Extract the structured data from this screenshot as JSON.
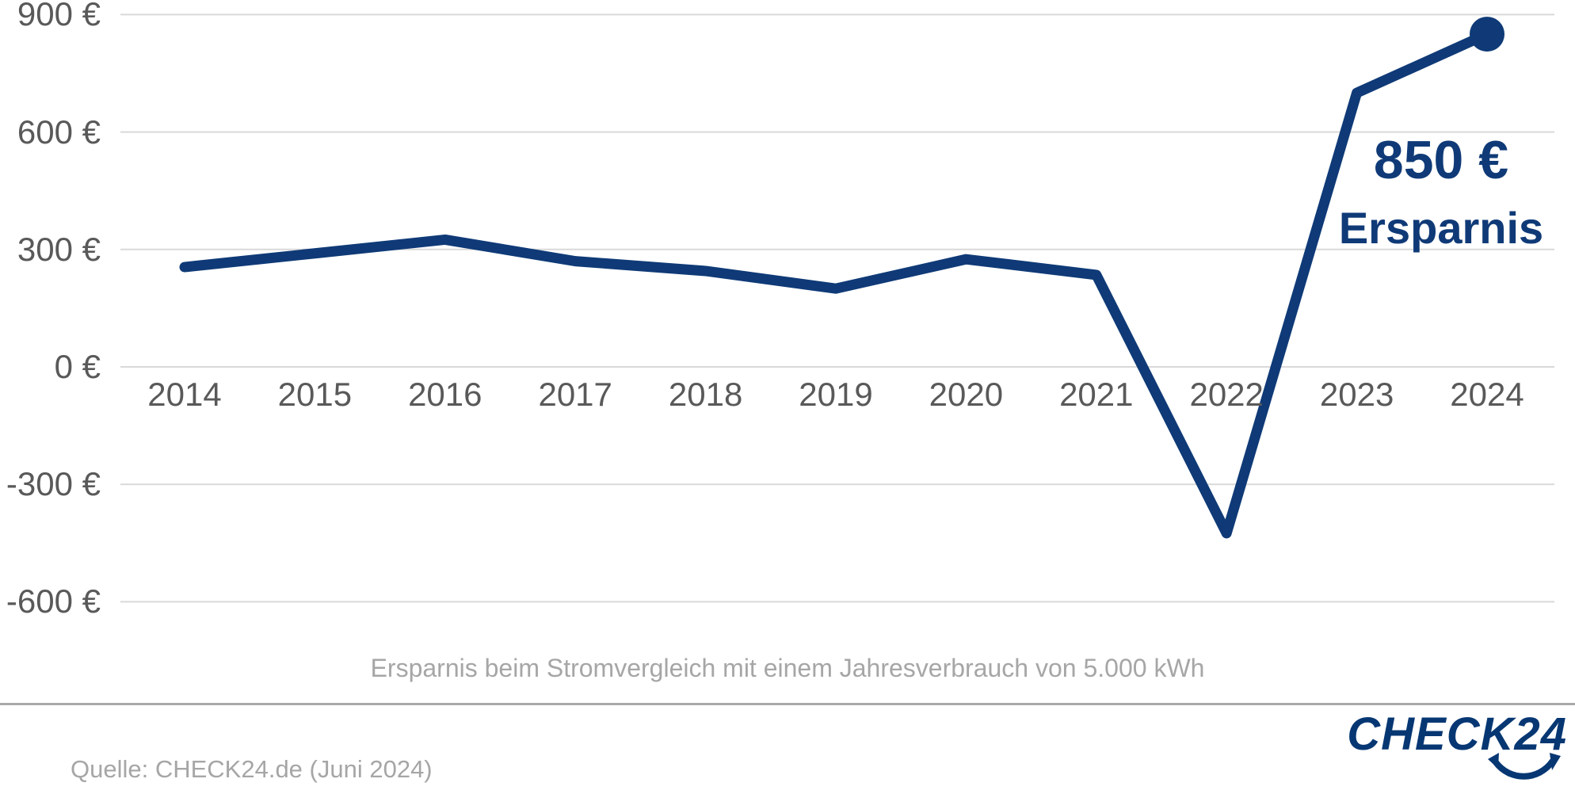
{
  "chart_data": {
    "type": "line",
    "categories": [
      "2014",
      "2015",
      "2016",
      "2017",
      "2018",
      "2019",
      "2020",
      "2021",
      "2022",
      "2023",
      "2024"
    ],
    "values": [
      255,
      290,
      325,
      270,
      245,
      200,
      275,
      235,
      -425,
      700,
      850
    ],
    "series_name": "Ersparnis beim Stromvergleich",
    "yticks": [
      {
        "value": 900,
        "label": "900 €"
      },
      {
        "value": 600,
        "label": "600 €"
      },
      {
        "value": 300,
        "label": "300 €"
      },
      {
        "value": 0,
        "label": "0 €"
      },
      {
        "value": -300,
        "label": "-300 €"
      },
      {
        "value": -600,
        "label": "-600 €"
      }
    ],
    "ylim": [
      -700,
      950
    ],
    "grid": true,
    "legend": "none",
    "marker_on_last_point": true,
    "annotation": {
      "value_label": "850 €",
      "text": "Ersparnis"
    },
    "caption": "Ersparnis beim Stromvergleich mit einem Jahresverbrauch von 5.000 kWh"
  },
  "footer": {
    "source": "Quelle: CHECK24.de (Juni 2024)",
    "logo_text": "CHECK24"
  },
  "colors": {
    "line": "#0f3a77",
    "grid": "#d9d9d9",
    "axis_text": "#595959",
    "muted_text": "#a6a6a6",
    "logo": "#063773"
  }
}
